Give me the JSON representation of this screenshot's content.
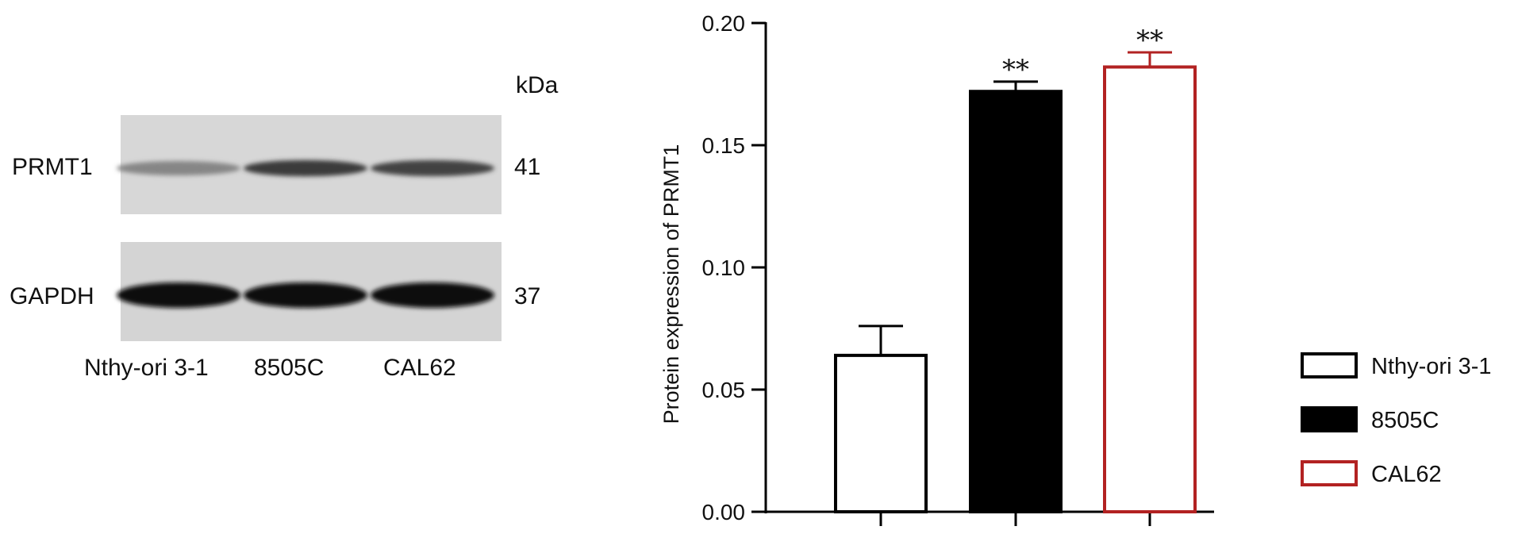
{
  "blot": {
    "unit_label": "kDa",
    "rows": [
      {
        "protein": "PRMT1",
        "kda": "41",
        "band_intensity": [
          0.35,
          0.75,
          0.7
        ]
      },
      {
        "protein": "GAPDH",
        "kda": "37",
        "band_intensity": [
          1.0,
          1.0,
          1.0
        ]
      }
    ],
    "lanes": [
      "Nthy-ori 3-1",
      "8505C",
      "CAL62"
    ]
  },
  "chart_data": {
    "type": "bar",
    "categories": [
      "Nthy-ori 3-1",
      "8505C",
      "CAL62"
    ],
    "values": [
      0.064,
      0.172,
      0.182
    ],
    "errors": [
      0.012,
      0.004,
      0.006
    ],
    "significance": [
      "",
      "**",
      "**"
    ],
    "ylabel": "Protein expression of PRMT1",
    "ylim": [
      0,
      0.2
    ],
    "yticks": [
      "0.00",
      "0.05",
      "0.10",
      "0.15",
      "0.20"
    ],
    "grid": false,
    "legend": {
      "placement": "right",
      "entries": [
        "Nthy-ori 3-1",
        "8505C",
        "CAL62"
      ]
    },
    "colors": {
      "Nthy-ori 3-1": {
        "fill": "#ffffff",
        "stroke": "#000000"
      },
      "8505C": {
        "fill": "#000000",
        "stroke": "#000000"
      },
      "CAL62": {
        "fill": "#ffffff",
        "stroke": "#b22222"
      }
    }
  }
}
